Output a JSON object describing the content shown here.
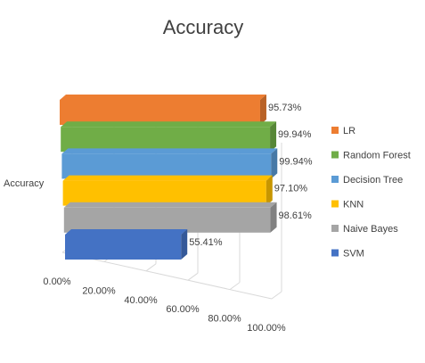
{
  "chart_data": {
    "type": "bar",
    "orientation": "horizontal",
    "style": "3d",
    "title": "Accuracy",
    "category_label": "Accuracy",
    "xlim": [
      0,
      100
    ],
    "x_ticks": [
      "0.00%",
      "20.00%",
      "40.00%",
      "60.00%",
      "80.00%",
      "100.00%"
    ],
    "grid": true,
    "legend_position": "right",
    "series": [
      {
        "name": "LR",
        "value": 95.73,
        "label": "95.73%",
        "color": "#ED7D31"
      },
      {
        "name": "Random Forest",
        "value": 99.94,
        "label": "99.94%",
        "color": "#70AD47"
      },
      {
        "name": "Decision Tree",
        "value": 99.94,
        "label": "99.94%",
        "color": "#5B9BD5"
      },
      {
        "name": "KNN",
        "value": 97.1,
        "label": "97.10%",
        "color": "#FFC000"
      },
      {
        "name": "Naive Bayes",
        "value": 98.61,
        "label": "98.61%",
        "color": "#A5A5A5"
      },
      {
        "name": "SVM",
        "value": 55.41,
        "label": "55.41%",
        "color": "#4472C4"
      }
    ]
  }
}
